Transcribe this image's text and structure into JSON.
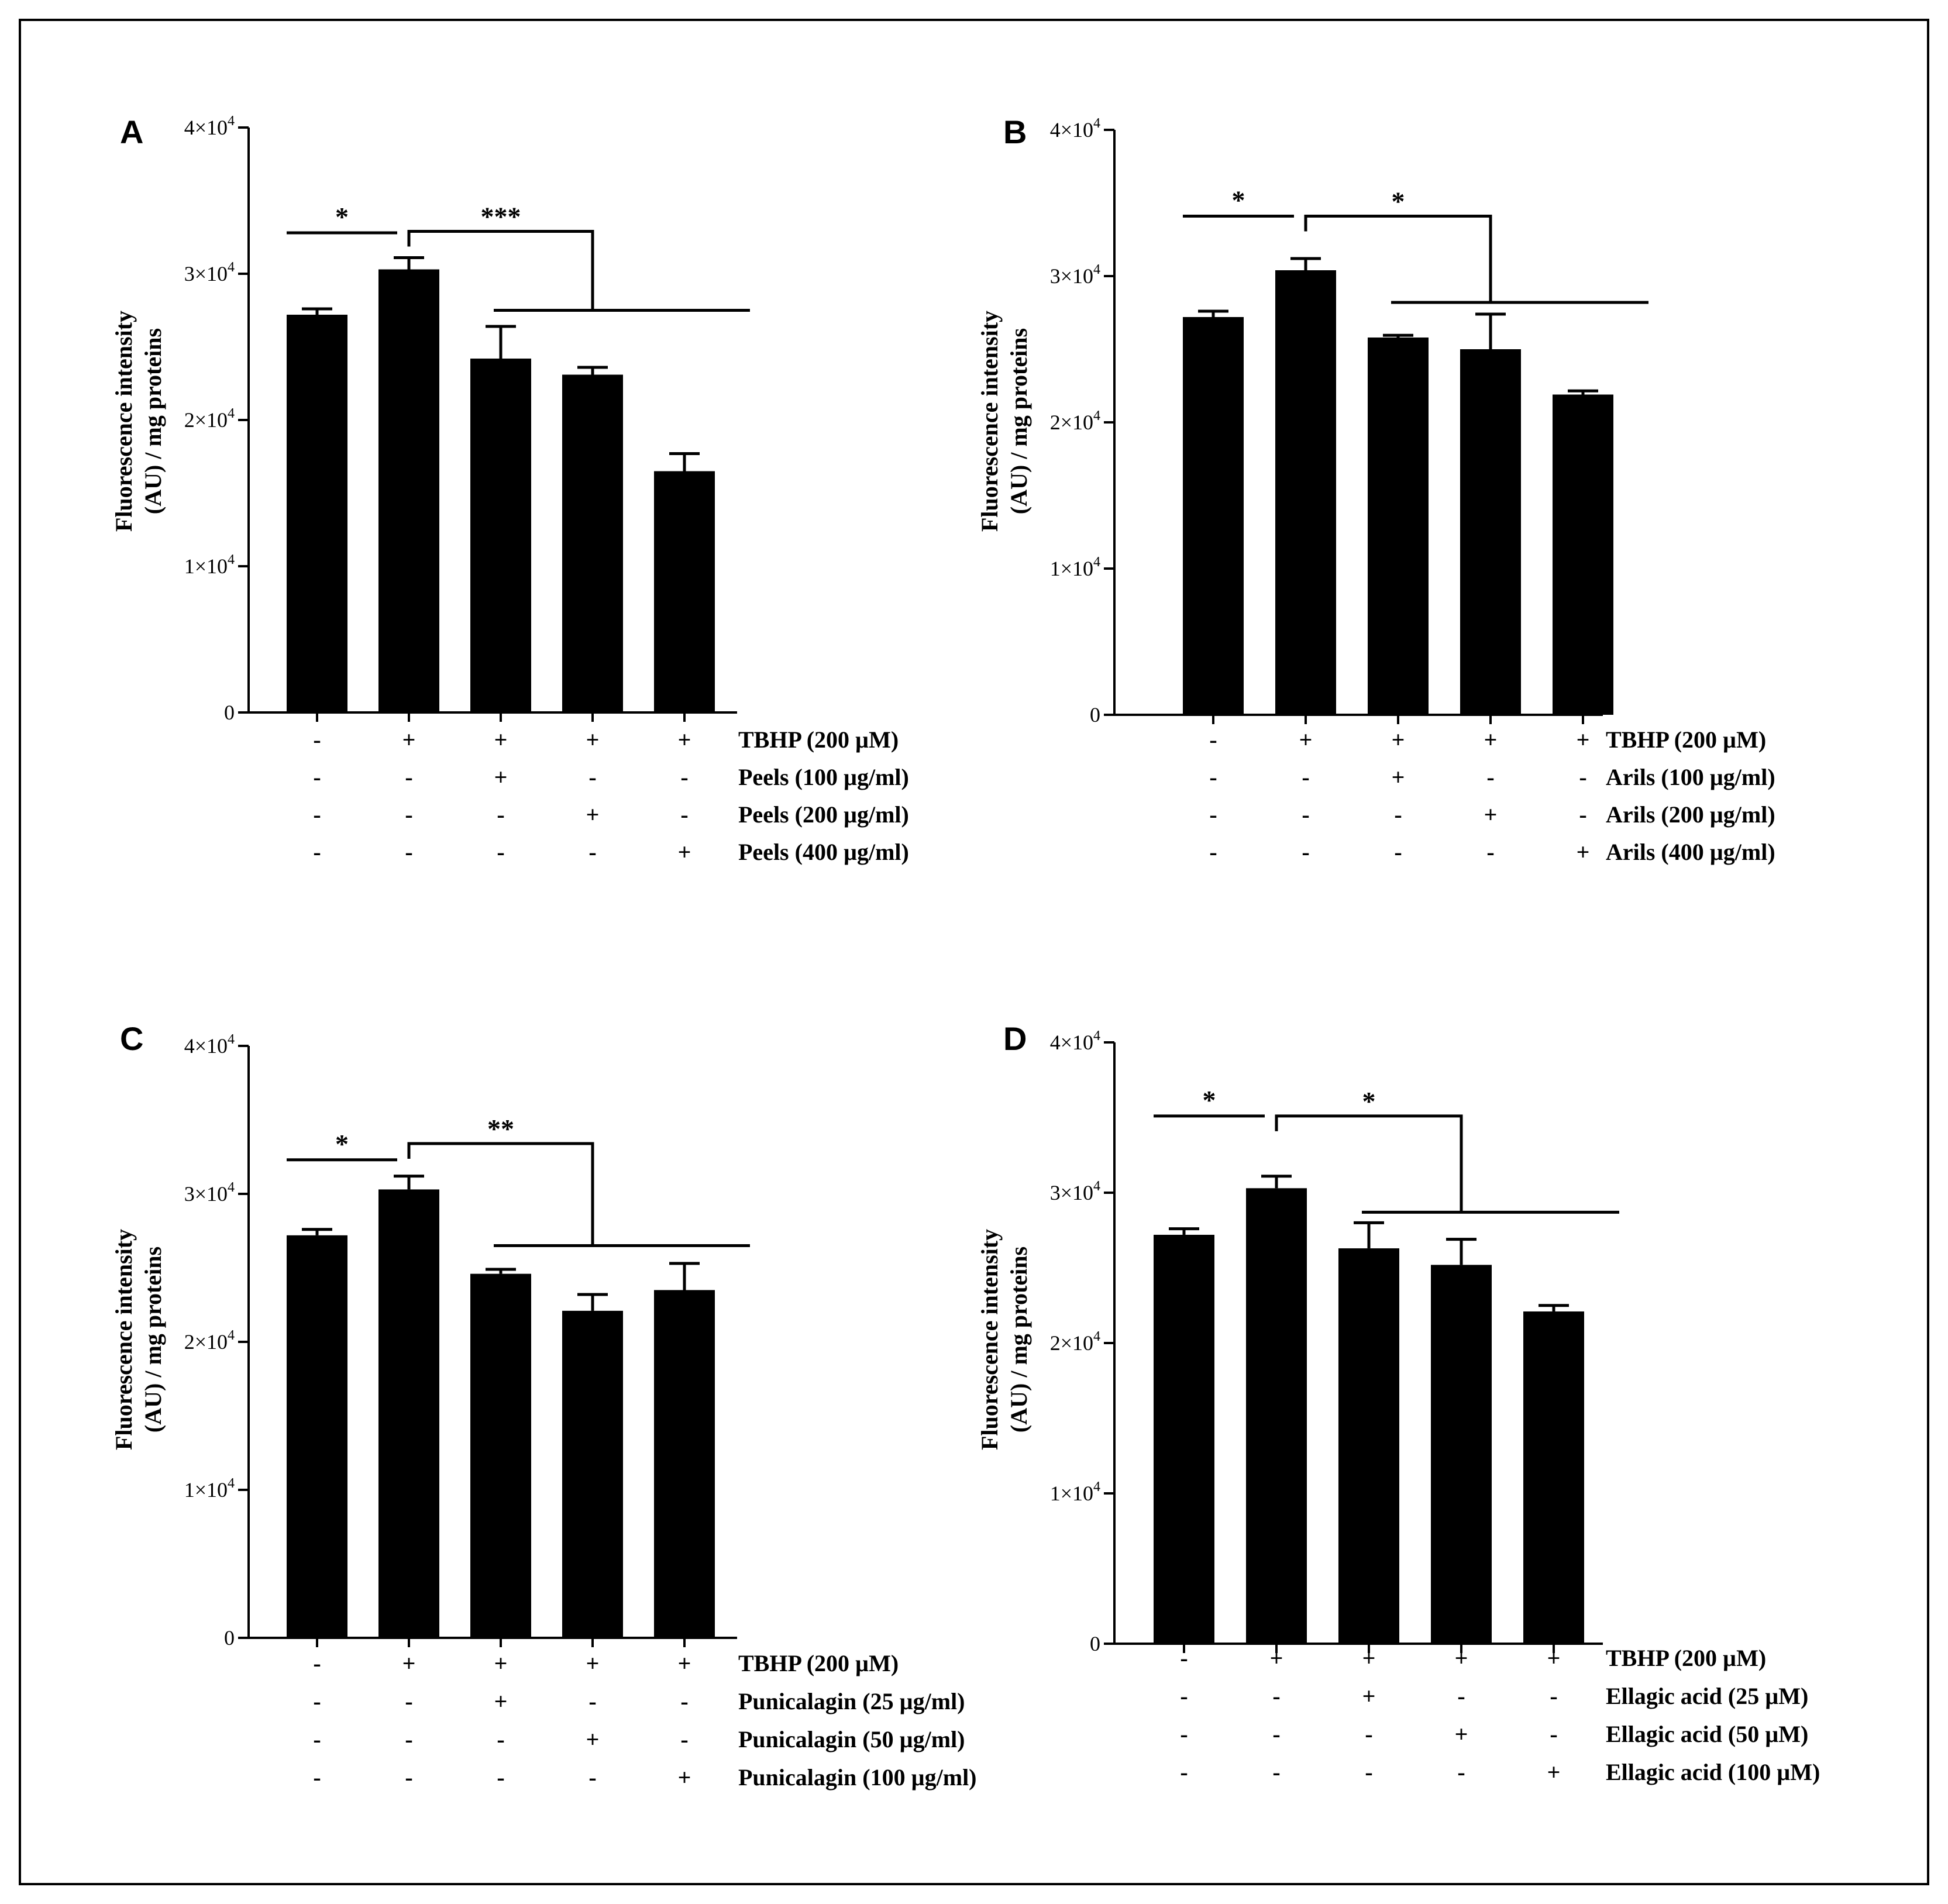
{
  "chart_data": [
    {
      "panel": "A",
      "type": "bar",
      "ylabel": [
        "Fluorescence intensity",
        "(AU) / mg proteins"
      ],
      "ylim": [
        0,
        40000
      ],
      "yticks": [
        {
          "value": 0,
          "base": "0",
          "exp": ""
        },
        {
          "value": 10000,
          "base": "1×10",
          "exp": "4"
        },
        {
          "value": 20000,
          "base": "2×10",
          "exp": "4"
        },
        {
          "value": 30000,
          "base": "3×10",
          "exp": "4"
        },
        {
          "value": 40000,
          "base": "4×10",
          "exp": "4"
        }
      ],
      "values": [
        27200,
        30300,
        24200,
        23100,
        16500
      ],
      "errors": [
        400,
        800,
        2200,
        500,
        1200
      ],
      "conditions": [
        {
          "label": "TBHP (200 µM)",
          "signs": [
            "-",
            "+",
            "+",
            "+",
            "+"
          ]
        },
        {
          "label": "Peels (100 µg/ml)",
          "signs": [
            "-",
            "-",
            "+",
            "-",
            "-"
          ]
        },
        {
          "label": "Peels (200 µg/ml)",
          "signs": [
            "-",
            "-",
            "-",
            "+",
            "-"
          ]
        },
        {
          "label": "Peels (400 µg/ml)",
          "signs": [
            "-",
            "-",
            "-",
            "-",
            "+"
          ]
        }
      ],
      "significance": [
        {
          "label": "*",
          "level": 32800
        },
        {
          "label": "***",
          "level": 32900,
          "low": 27500
        }
      ]
    },
    {
      "panel": "B",
      "type": "bar",
      "ylabel": [
        "Fluorescence intensity",
        "(AU) / mg proteins"
      ],
      "ylim": [
        0,
        40000
      ],
      "yticks": [
        {
          "value": 0,
          "base": "0",
          "exp": ""
        },
        {
          "value": 10000,
          "base": "1×10",
          "exp": "4"
        },
        {
          "value": 20000,
          "base": "2×10",
          "exp": "4"
        },
        {
          "value": 30000,
          "base": "3×10",
          "exp": "4"
        },
        {
          "value": 40000,
          "base": "4×10",
          "exp": "4"
        }
      ],
      "values": [
        27200,
        30400,
        25800,
        25000,
        21900
      ],
      "errors": [
        400,
        800,
        150,
        2400,
        250
      ],
      "conditions": [
        {
          "label": "TBHP (200 µM)",
          "signs": [
            "-",
            "+",
            "+",
            "+",
            "+"
          ]
        },
        {
          "label": "Arils (100 µg/ml)",
          "signs": [
            "-",
            "-",
            "+",
            "-",
            "-"
          ]
        },
        {
          "label": "Arils (200 µg/ml)",
          "signs": [
            "-",
            "-",
            "-",
            "+",
            "-"
          ]
        },
        {
          "label": "Arils (400 µg/ml)",
          "signs": [
            "-",
            "-",
            "-",
            "-",
            "+"
          ]
        }
      ],
      "significance": [
        {
          "label": "*",
          "level": 34100
        },
        {
          "label": "*",
          "level": 34100,
          "low": 28200
        }
      ]
    },
    {
      "panel": "C",
      "type": "bar",
      "ylabel": [
        "Fluorescence intensity",
        "(AU) / mg proteins"
      ],
      "ylim": [
        0,
        40000
      ],
      "yticks": [
        {
          "value": 0,
          "base": "0",
          "exp": ""
        },
        {
          "value": 10000,
          "base": "1×10",
          "exp": "4"
        },
        {
          "value": 20000,
          "base": "2×10",
          "exp": "4"
        },
        {
          "value": 30000,
          "base": "3×10",
          "exp": "4"
        },
        {
          "value": 40000,
          "base": "4×10",
          "exp": "4"
        }
      ],
      "values": [
        27200,
        30300,
        24600,
        22100,
        23500
      ],
      "errors": [
        400,
        900,
        300,
        1100,
        1800
      ],
      "conditions": [
        {
          "label": "TBHP (200 µM)",
          "signs": [
            "-",
            "+",
            "+",
            "+",
            "+"
          ]
        },
        {
          "label": "Punicalagin (25 µg/ml)",
          "signs": [
            "-",
            "-",
            "+",
            "-",
            "-"
          ]
        },
        {
          "label": "Punicalagin (50 µg/ml)",
          "signs": [
            "-",
            "-",
            "-",
            "+",
            "-"
          ]
        },
        {
          "label": "Punicalagin (100 µg/ml)",
          "signs": [
            "-",
            "-",
            "-",
            "-",
            "+"
          ]
        }
      ],
      "significance": [
        {
          "label": "*",
          "level": 32300
        },
        {
          "label": "**",
          "level": 33400,
          "low": 26500
        }
      ]
    },
    {
      "panel": "D",
      "type": "bar",
      "ylabel": [
        "Fluorescence intensity",
        "(AU) / mg proteins"
      ],
      "ylim": [
        0,
        40000
      ],
      "yticks": [
        {
          "value": 0,
          "base": "0",
          "exp": ""
        },
        {
          "value": 10000,
          "base": "1×10",
          "exp": "4"
        },
        {
          "value": 20000,
          "base": "2×10",
          "exp": "4"
        },
        {
          "value": 30000,
          "base": "3×10",
          "exp": "4"
        },
        {
          "value": 40000,
          "base": "4×10",
          "exp": "4"
        }
      ],
      "values": [
        27200,
        30300,
        26300,
        25200,
        22100
      ],
      "errors": [
        400,
        800,
        1700,
        1700,
        400
      ],
      "conditions": [
        {
          "label": "TBHP (200 µM)",
          "signs": [
            "-",
            "+",
            "+",
            "+",
            "+"
          ]
        },
        {
          "label": "Ellagic acid (25 µM)",
          "signs": [
            "-",
            "-",
            "+",
            "-",
            "-"
          ]
        },
        {
          "label": "Ellagic acid (50 µM)",
          "signs": [
            "-",
            "-",
            "-",
            "+",
            "-"
          ]
        },
        {
          "label": "Ellagic acid (100 µM)",
          "signs": [
            "-",
            "-",
            "-",
            "-",
            "+"
          ]
        }
      ],
      "significance": [
        {
          "label": "*",
          "level": 35100
        },
        {
          "label": "*",
          "level": 35100,
          "low": 28700
        }
      ]
    }
  ]
}
